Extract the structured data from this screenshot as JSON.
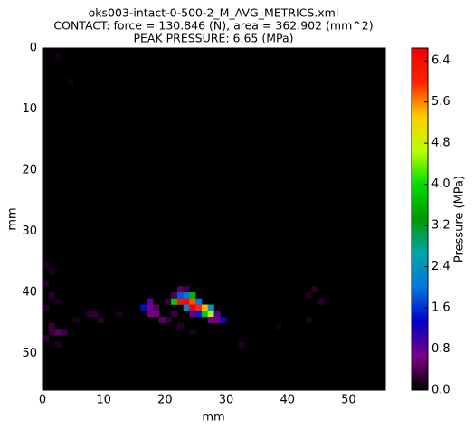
{
  "chart_data": {
    "type": "heatmap",
    "title_lines": [
      "oks003-intact-0-500-2_M_AVG_METRICS.xml",
      "CONTACT: force = 130.846 (N), area = 362.902 (mm^2)",
      "PEAK PRESSURE: 6.65 (MPa)"
    ],
    "x_label": "mm",
    "y_label": "mm",
    "colorbar_label": "Pressure (MPa)",
    "xlim": [
      0,
      56
    ],
    "ylim": [
      56,
      0
    ],
    "xticks": [
      0,
      10,
      20,
      30,
      40,
      50
    ],
    "yticks": [
      0,
      10,
      20,
      30,
      40,
      50
    ],
    "clim": [
      0,
      6.65
    ],
    "cticks": [
      {
        "value": 0,
        "label": "0.0"
      },
      {
        "value": 0.8,
        "label": "0.8"
      },
      {
        "value": 1.6,
        "label": "1.6"
      },
      {
        "value": 2.4,
        "label": "2.4"
      },
      {
        "value": 3.2,
        "label": "3.2"
      },
      {
        "value": 4,
        "label": "4.0"
      },
      {
        "value": 4.8,
        "label": "4.8"
      },
      {
        "value": 5.6,
        "label": "5.6"
      },
      {
        "value": 6.4,
        "label": "6.4"
      }
    ],
    "colormap": [
      "#000000",
      "#7a0088",
      "#0000c8",
      "#0077dd",
      "#00a6aa",
      "#009900",
      "#00dd00",
      "#bbff00",
      "#ffcc00",
      "#ff2200",
      "#ee0000"
    ],
    "background_color": "#000000",
    "cells": [
      {
        "x": 0,
        "y": 35,
        "value": 0.15
      },
      {
        "x": 1,
        "y": 36,
        "value": 0.15
      },
      {
        "x": 0,
        "y": 38,
        "value": 0.2
      },
      {
        "x": 1,
        "y": 40,
        "value": 0.2
      },
      {
        "x": 2,
        "y": 41,
        "value": 0.15
      },
      {
        "x": 0,
        "y": 42,
        "value": 0.2
      },
      {
        "x": 1,
        "y": 45,
        "value": 0.3
      },
      {
        "x": 2,
        "y": 46,
        "value": 0.5
      },
      {
        "x": 1,
        "y": 46,
        "value": 0.3
      },
      {
        "x": 3,
        "y": 46,
        "value": 0.35
      },
      {
        "x": 0,
        "y": 47,
        "value": 0.25
      },
      {
        "x": 2,
        "y": 48,
        "value": 0.15
      },
      {
        "x": 5,
        "y": 44,
        "value": 0.15
      },
      {
        "x": 7,
        "y": 43,
        "value": 0.2
      },
      {
        "x": 8,
        "y": 43,
        "value": 0.25
      },
      {
        "x": 9,
        "y": 44,
        "value": 0.2
      },
      {
        "x": 12,
        "y": 43,
        "value": 0.15
      },
      {
        "x": 22,
        "y": 39,
        "value": 0.5
      },
      {
        "x": 23,
        "y": 39,
        "value": 0.3
      },
      {
        "x": 21,
        "y": 40,
        "value": 0.4
      },
      {
        "x": 22,
        "y": 40,
        "value": 1.8
      },
      {
        "x": 23,
        "y": 40,
        "value": 2.0
      },
      {
        "x": 24,
        "y": 40,
        "value": 3.6
      },
      {
        "x": 17,
        "y": 41,
        "value": 0.8
      },
      {
        "x": 20,
        "y": 41,
        "value": 0.3
      },
      {
        "x": 21,
        "y": 41,
        "value": 3.8
      },
      {
        "x": 22,
        "y": 41,
        "value": 6.2
      },
      {
        "x": 23,
        "y": 41,
        "value": 6.4
      },
      {
        "x": 24,
        "y": 41,
        "value": 5.8
      },
      {
        "x": 25,
        "y": 41,
        "value": 2.0
      },
      {
        "x": 16,
        "y": 42,
        "value": 1.4
      },
      {
        "x": 17,
        "y": 42,
        "value": 0.7
      },
      {
        "x": 18,
        "y": 42,
        "value": 0.5
      },
      {
        "x": 23,
        "y": 42,
        "value": 2.2
      },
      {
        "x": 24,
        "y": 42,
        "value": 6.65
      },
      {
        "x": 25,
        "y": 42,
        "value": 6.0
      },
      {
        "x": 26,
        "y": 42,
        "value": 5.4
      },
      {
        "x": 27,
        "y": 42,
        "value": 2.4
      },
      {
        "x": 17,
        "y": 43,
        "value": 0.6
      },
      {
        "x": 18,
        "y": 43,
        "value": 0.7
      },
      {
        "x": 21,
        "y": 43,
        "value": 0.3
      },
      {
        "x": 24,
        "y": 43,
        "value": 0.8
      },
      {
        "x": 25,
        "y": 43,
        "value": 1.5
      },
      {
        "x": 26,
        "y": 43,
        "value": 3.8
      },
      {
        "x": 27,
        "y": 43,
        "value": 4.6
      },
      {
        "x": 28,
        "y": 43,
        "value": 0.9
      },
      {
        "x": 19,
        "y": 44,
        "value": 0.5
      },
      {
        "x": 20,
        "y": 44,
        "value": 0.3
      },
      {
        "x": 27,
        "y": 44,
        "value": 0.7
      },
      {
        "x": 28,
        "y": 44,
        "value": 0.6
      },
      {
        "x": 29,
        "y": 44,
        "value": 1.2
      },
      {
        "x": 22,
        "y": 45,
        "value": 0.2
      },
      {
        "x": 24,
        "y": 46,
        "value": 0.15
      },
      {
        "x": 32,
        "y": 48,
        "value": 0.15
      },
      {
        "x": 44,
        "y": 39,
        "value": 0.2
      },
      {
        "x": 43,
        "y": 40,
        "value": 0.15
      },
      {
        "x": 45,
        "y": 41,
        "value": 0.2
      },
      {
        "x": 43,
        "y": 44,
        "value": 0.15
      },
      {
        "x": 38,
        "y": 45,
        "value": 0.1
      },
      {
        "x": 2,
        "y": 1,
        "value": 0.1
      },
      {
        "x": 4,
        "y": 5,
        "value": 0.1
      }
    ]
  }
}
